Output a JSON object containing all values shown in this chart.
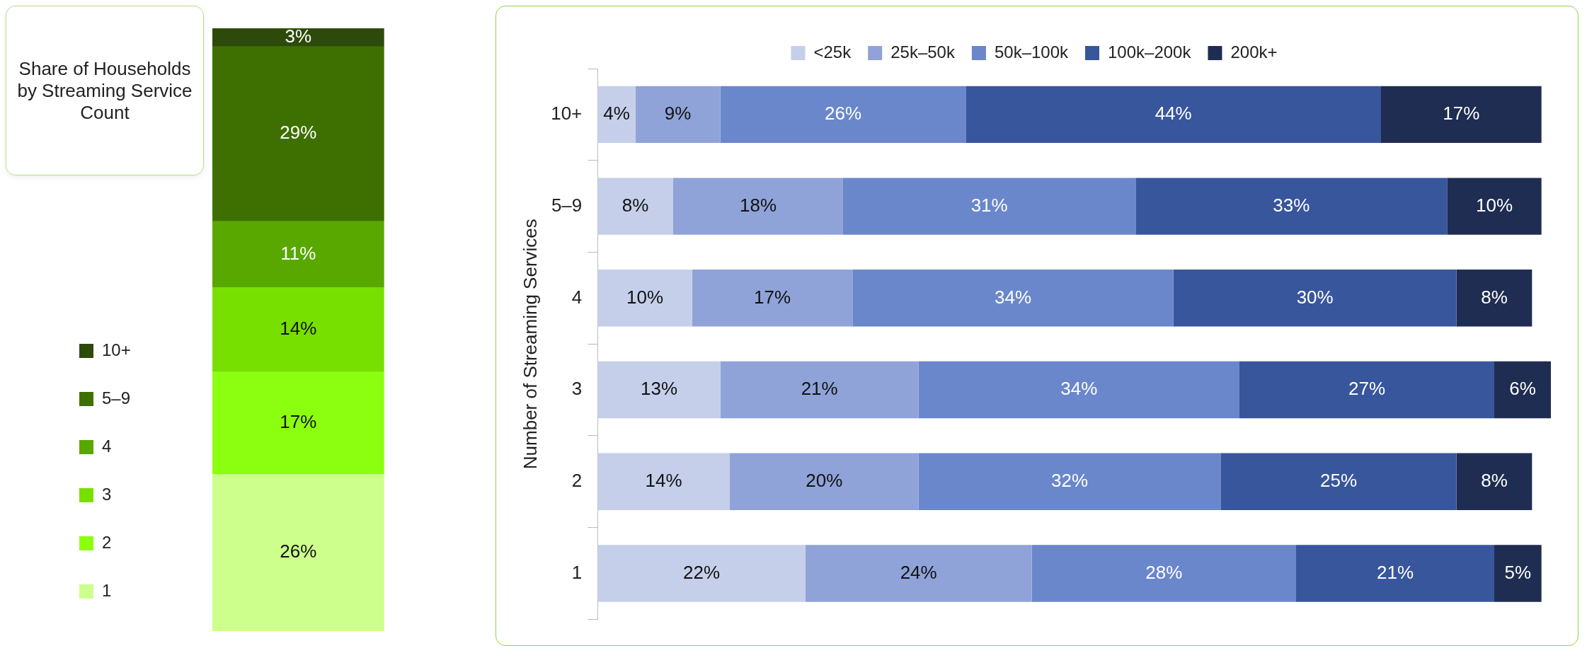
{
  "chart_data": [
    {
      "type": "bar",
      "title": "Share of Households by Streaming Service Count",
      "categories": [
        null
      ],
      "stacked": true,
      "legend": "left",
      "series": [
        {
          "name": "1",
          "color": "#ccff8c",
          "values": [
            26
          ],
          "value_labels": [
            "26%"
          ]
        },
        {
          "name": "2",
          "color": "#8cff10",
          "values": [
            17
          ],
          "value_labels": [
            "17%"
          ]
        },
        {
          "name": "3",
          "color": "#78e000",
          "values": [
            14
          ],
          "value_labels": [
            "14%"
          ]
        },
        {
          "name": "4",
          "color": "#58a800",
          "values": [
            11
          ],
          "value_labels": [
            "11%"
          ]
        },
        {
          "name": "5–9",
          "color": "#3d7000",
          "values": [
            29
          ],
          "value_labels": [
            "29%"
          ]
        },
        {
          "name": "10+",
          "color": "#2d4a0a",
          "values": [
            3
          ],
          "value_labels": [
            "3%"
          ]
        }
      ]
    },
    {
      "type": "bar",
      "orientation": "horizontal",
      "stacked": true,
      "ylabel": "Number of Streaming Services",
      "legend": "top",
      "categories": [
        "10+",
        "5–9",
        "4",
        "3",
        "2",
        "1"
      ],
      "series": [
        {
          "name": "<25k",
          "color": "#c5cfea",
          "values": [
            4,
            8,
            10,
            13,
            14,
            22
          ],
          "value_labels": [
            "4%",
            "8%",
            "10%",
            "13%",
            "14%",
            "22%"
          ]
        },
        {
          "name": "25k–50k",
          "color": "#8fa3d8",
          "values": [
            9,
            18,
            17,
            21,
            20,
            24
          ],
          "value_labels": [
            "9%",
            "18%",
            "17%",
            "21%",
            "20%",
            "24%"
          ]
        },
        {
          "name": "50k–100k",
          "color": "#6a87cb",
          "values": [
            26,
            31,
            34,
            34,
            32,
            28
          ],
          "value_labels": [
            "26%",
            "31%",
            "34%",
            "34%",
            "32%",
            "28%"
          ]
        },
        {
          "name": "100k–200k",
          "color": "#38569c",
          "values": [
            44,
            33,
            30,
            27,
            25,
            21
          ],
          "value_labels": [
            "44%",
            "33%",
            "30%",
            "27%",
            "25%",
            "21%"
          ]
        },
        {
          "name": "200k+",
          "color": "#1f2d52",
          "values": [
            17,
            10,
            8,
            6,
            8,
            5
          ],
          "value_labels": [
            "17%",
            "10%",
            "8%",
            "6%",
            "8%",
            "5%"
          ]
        }
      ]
    }
  ]
}
